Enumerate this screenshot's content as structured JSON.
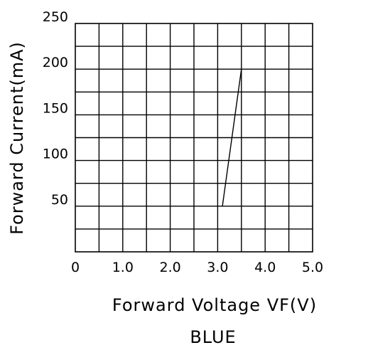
{
  "chart_data": {
    "type": "line",
    "subtitle": "BLUE",
    "xlabel": "Forward Voltage VF(V)",
    "ylabel": "Forward Current(mA)",
    "xlim": [
      0,
      5.0
    ],
    "ylim": [
      0,
      250
    ],
    "grid": true,
    "x_ticks": [
      {
        "value": 0,
        "label": "0"
      },
      {
        "value": 1.0,
        "label": "1.0"
      },
      {
        "value": 2.0,
        "label": "2.0"
      },
      {
        "value": 3.0,
        "label": "3.0"
      },
      {
        "value": 4.0,
        "label": "4.0"
      },
      {
        "value": 5.0,
        "label": "5.0"
      }
    ],
    "y_ticks": [
      {
        "value": 50,
        "label": "50"
      },
      {
        "value": 100,
        "label": "100"
      },
      {
        "value": 150,
        "label": "150"
      },
      {
        "value": 200,
        "label": "200"
      },
      {
        "value": 250,
        "label": "250"
      }
    ],
    "series": [
      {
        "points": [
          {
            "x": 3.1,
            "y": 50
          },
          {
            "x": 3.5,
            "y": 200
          }
        ]
      }
    ],
    "colors": {
      "ink": "#000000",
      "background": "#ffffff"
    }
  }
}
